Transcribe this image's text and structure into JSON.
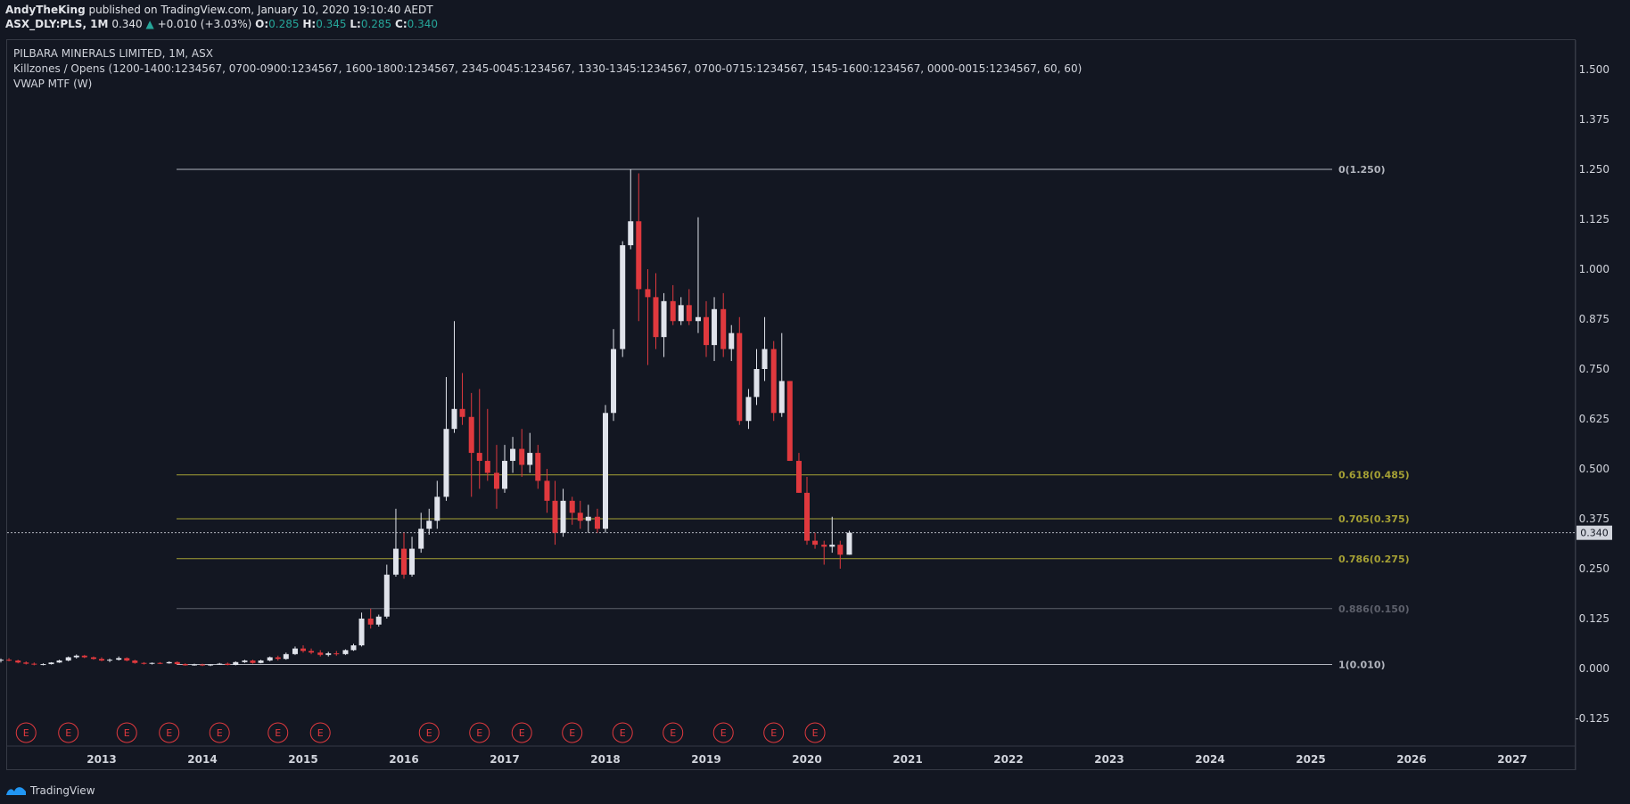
{
  "header": {
    "author": "AndyTheKing",
    "published_text": "published on TradingView.com, January 10, 2020 19:10:40 AEDT",
    "symbol": "ASX_DLY:PLS, 1M",
    "last": "0.340",
    "change": "+0.010 (+3.03%)",
    "o_label": "O:",
    "o_value": "0.285",
    "h_label": "H:",
    "h_value": "0.345",
    "l_label": "L:",
    "l_value": "0.285",
    "c_label": "C:",
    "c_value": "0.340"
  },
  "legend": {
    "title": "PILBARA MINERALS LIMITED, 1M, ASX",
    "killzones": "Killzones / Opens (1200-1400:1234567, 0700-0900:1234567, 1600-1800:1234567, 2345-0045:1234567, 1330-1345:1234567, 0700-0715:1234567, 1545-1600:1234567, 0000-0015:1234567, 60, 60)",
    "vwap": "VWAP MTF (W)"
  },
  "footer": {
    "brand": "TradingView",
    "logo_icon": "tradingview-logo-icon"
  },
  "colors": {
    "background": "#131722",
    "up_candle": "#e0e3eb",
    "down_candle": "#e0393e",
    "fib_white": "#b2b5be",
    "fib_yellow": "#a5a034",
    "fib_gray": "#5d606b",
    "earnings": "#e0393e",
    "price_line": "#b2b5be"
  },
  "chart_data": {
    "type": "candlestick",
    "symbol": "ASX_DLY:PLS",
    "interval": "1M",
    "ylim": [
      -0.17,
      1.58
    ],
    "y_ticks": [
      "1.500",
      "1.375",
      "1.250",
      "1.125",
      "1.000",
      "0.875",
      "0.750",
      "0.625",
      "0.500",
      "0.375",
      "0.250",
      "0.125",
      "0.000",
      "-0.125"
    ],
    "x_ticks": [
      "2013",
      "2014",
      "2015",
      "2016",
      "2017",
      "2018",
      "2019",
      "2020",
      "2021",
      "2022",
      "2023",
      "2024",
      "2025",
      "2026",
      "2027"
    ],
    "last_price": "0.340",
    "fib_levels": [
      {
        "label": "0(1.250)",
        "value": 1.25,
        "style": "white"
      },
      {
        "label": "0.618(0.485)",
        "value": 0.485,
        "style": "yellow"
      },
      {
        "label": "0.705(0.375)",
        "value": 0.375,
        "style": "yellow"
      },
      {
        "label": "0.786(0.275)",
        "value": 0.275,
        "style": "yellow"
      },
      {
        "label": "0.886(0.150)",
        "value": 0.15,
        "style": "gray"
      },
      {
        "label": "1(0.010)",
        "value": 0.01,
        "style": "white"
      }
    ],
    "earnings_marker": "E",
    "earnings_dates": [
      2012.25,
      2012.67,
      2013.25,
      2013.67,
      2014.17,
      2014.75,
      2015.17,
      2016.25,
      2016.75,
      2017.17,
      2017.67,
      2018.17,
      2018.67,
      2019.17,
      2019.67,
      2020.08
    ],
    "candles": [
      [
        2012.0,
        0.02,
        0.025,
        0.015,
        0.022
      ],
      [
        2012.08,
        0.022,
        0.026,
        0.018,
        0.02
      ],
      [
        2012.17,
        0.02,
        0.022,
        0.013,
        0.015
      ],
      [
        2012.25,
        0.015,
        0.018,
        0.01,
        0.012
      ],
      [
        2012.33,
        0.012,
        0.015,
        0.008,
        0.01
      ],
      [
        2012.42,
        0.01,
        0.013,
        0.008,
        0.011
      ],
      [
        2012.5,
        0.011,
        0.016,
        0.01,
        0.015
      ],
      [
        2012.58,
        0.015,
        0.022,
        0.014,
        0.02
      ],
      [
        2012.67,
        0.02,
        0.03,
        0.018,
        0.028
      ],
      [
        2012.75,
        0.028,
        0.035,
        0.025,
        0.032
      ],
      [
        2012.83,
        0.032,
        0.034,
        0.026,
        0.028
      ],
      [
        2012.92,
        0.028,
        0.03,
        0.022,
        0.024
      ],
      [
        2013.0,
        0.024,
        0.028,
        0.018,
        0.02
      ],
      [
        2013.08,
        0.02,
        0.025,
        0.016,
        0.022
      ],
      [
        2013.17,
        0.022,
        0.03,
        0.02,
        0.026
      ],
      [
        2013.25,
        0.026,
        0.028,
        0.018,
        0.02
      ],
      [
        2013.33,
        0.02,
        0.022,
        0.012,
        0.014
      ],
      [
        2013.42,
        0.014,
        0.016,
        0.01,
        0.012
      ],
      [
        2013.5,
        0.012,
        0.015,
        0.01,
        0.014
      ],
      [
        2013.58,
        0.014,
        0.016,
        0.011,
        0.013
      ],
      [
        2013.67,
        0.013,
        0.018,
        0.012,
        0.016
      ],
      [
        2013.75,
        0.016,
        0.018,
        0.01,
        0.011
      ],
      [
        2013.83,
        0.011,
        0.013,
        0.007,
        0.008
      ],
      [
        2013.92,
        0.008,
        0.012,
        0.007,
        0.01
      ],
      [
        2014.0,
        0.01,
        0.012,
        0.006,
        0.008
      ],
      [
        2014.08,
        0.008,
        0.011,
        0.006,
        0.01
      ],
      [
        2014.17,
        0.01,
        0.014,
        0.009,
        0.012
      ],
      [
        2014.25,
        0.012,
        0.015,
        0.008,
        0.009
      ],
      [
        2014.33,
        0.009,
        0.018,
        0.008,
        0.016
      ],
      [
        2014.42,
        0.016,
        0.022,
        0.014,
        0.02
      ],
      [
        2014.5,
        0.02,
        0.022,
        0.012,
        0.014
      ],
      [
        2014.58,
        0.014,
        0.022,
        0.013,
        0.02
      ],
      [
        2014.67,
        0.02,
        0.03,
        0.018,
        0.028
      ],
      [
        2014.75,
        0.028,
        0.032,
        0.02,
        0.024
      ],
      [
        2014.83,
        0.024,
        0.04,
        0.022,
        0.036
      ],
      [
        2014.92,
        0.036,
        0.055,
        0.034,
        0.05
      ],
      [
        2015.0,
        0.05,
        0.058,
        0.04,
        0.044
      ],
      [
        2015.08,
        0.044,
        0.05,
        0.036,
        0.04
      ],
      [
        2015.17,
        0.04,
        0.046,
        0.03,
        0.034
      ],
      [
        2015.25,
        0.034,
        0.042,
        0.03,
        0.038
      ],
      [
        2015.33,
        0.038,
        0.044,
        0.032,
        0.036
      ],
      [
        2015.42,
        0.036,
        0.048,
        0.034,
        0.046
      ],
      [
        2015.5,
        0.046,
        0.062,
        0.044,
        0.058
      ],
      [
        2015.58,
        0.058,
        0.14,
        0.055,
        0.125
      ],
      [
        2015.67,
        0.125,
        0.15,
        0.1,
        0.11
      ],
      [
        2015.75,
        0.11,
        0.135,
        0.105,
        0.13
      ],
      [
        2015.83,
        0.13,
        0.26,
        0.125,
        0.235
      ],
      [
        2015.92,
        0.235,
        0.4,
        0.23,
        0.3
      ],
      [
        2016.0,
        0.3,
        0.34,
        0.225,
        0.235
      ],
      [
        2016.08,
        0.235,
        0.33,
        0.23,
        0.3
      ],
      [
        2016.17,
        0.3,
        0.39,
        0.29,
        0.35
      ],
      [
        2016.25,
        0.35,
        0.4,
        0.335,
        0.37
      ],
      [
        2016.33,
        0.37,
        0.47,
        0.35,
        0.43
      ],
      [
        2016.42,
        0.43,
        0.73,
        0.42,
        0.6
      ],
      [
        2016.5,
        0.6,
        0.87,
        0.59,
        0.65
      ],
      [
        2016.58,
        0.65,
        0.74,
        0.61,
        0.63
      ],
      [
        2016.67,
        0.63,
        0.69,
        0.43,
        0.54
      ],
      [
        2016.75,
        0.54,
        0.7,
        0.45,
        0.52
      ],
      [
        2016.83,
        0.52,
        0.65,
        0.47,
        0.49
      ],
      [
        2016.92,
        0.49,
        0.56,
        0.4,
        0.45
      ],
      [
        2017.0,
        0.45,
        0.56,
        0.44,
        0.52
      ],
      [
        2017.08,
        0.52,
        0.58,
        0.49,
        0.55
      ],
      [
        2017.17,
        0.55,
        0.6,
        0.48,
        0.51
      ],
      [
        2017.25,
        0.51,
        0.59,
        0.49,
        0.54
      ],
      [
        2017.33,
        0.54,
        0.56,
        0.45,
        0.47
      ],
      [
        2017.42,
        0.47,
        0.5,
        0.39,
        0.42
      ],
      [
        2017.5,
        0.42,
        0.47,
        0.31,
        0.34
      ],
      [
        2017.58,
        0.34,
        0.45,
        0.33,
        0.42
      ],
      [
        2017.67,
        0.42,
        0.43,
        0.36,
        0.39
      ],
      [
        2017.75,
        0.39,
        0.42,
        0.35,
        0.37
      ],
      [
        2017.83,
        0.37,
        0.41,
        0.34,
        0.38
      ],
      [
        2017.92,
        0.38,
        0.4,
        0.34,
        0.35
      ],
      [
        2018.0,
        0.35,
        0.66,
        0.34,
        0.64
      ],
      [
        2018.08,
        0.64,
        0.85,
        0.62,
        0.8
      ],
      [
        2018.17,
        0.8,
        1.07,
        0.78,
        1.06
      ],
      [
        2018.25,
        1.06,
        1.25,
        1.05,
        1.12
      ],
      [
        2018.33,
        1.12,
        1.24,
        0.87,
        0.95
      ],
      [
        2018.42,
        0.95,
        1.0,
        0.76,
        0.93
      ],
      [
        2018.5,
        0.93,
        0.99,
        0.8,
        0.83
      ],
      [
        2018.58,
        0.83,
        0.94,
        0.78,
        0.92
      ],
      [
        2018.67,
        0.92,
        0.96,
        0.86,
        0.87
      ],
      [
        2018.75,
        0.87,
        0.93,
        0.86,
        0.91
      ],
      [
        2018.83,
        0.91,
        0.95,
        0.86,
        0.87
      ],
      [
        2018.92,
        0.87,
        1.13,
        0.84,
        0.88
      ],
      [
        2019.0,
        0.88,
        0.92,
        0.78,
        0.81
      ],
      [
        2019.08,
        0.81,
        0.93,
        0.77,
        0.9
      ],
      [
        2019.17,
        0.9,
        0.94,
        0.78,
        0.8
      ],
      [
        2019.25,
        0.8,
        0.86,
        0.77,
        0.84
      ],
      [
        2019.33,
        0.84,
        0.88,
        0.61,
        0.62
      ],
      [
        2019.42,
        0.62,
        0.7,
        0.6,
        0.68
      ],
      [
        2019.5,
        0.68,
        0.8,
        0.66,
        0.75
      ],
      [
        2019.58,
        0.75,
        0.88,
        0.72,
        0.8
      ],
      [
        2019.67,
        0.8,
        0.82,
        0.62,
        0.64
      ],
      [
        2019.75,
        0.64,
        0.84,
        0.63,
        0.72
      ],
      [
        2019.83,
        0.72,
        0.72,
        0.52,
        0.52
      ],
      [
        2019.92,
        0.52,
        0.54,
        0.44,
        0.44
      ],
      [
        2020.0,
        0.44,
        0.48,
        0.31,
        0.32
      ],
      [
        2020.08,
        0.32,
        0.34,
        0.3,
        0.31
      ],
      [
        2020.17,
        0.31,
        0.32,
        0.26,
        0.305
      ],
      [
        2020.25,
        0.305,
        0.38,
        0.29,
        0.31
      ],
      [
        2020.33,
        0.31,
        0.32,
        0.25,
        0.285
      ],
      [
        2020.42,
        0.285,
        0.345,
        0.285,
        0.34
      ]
    ]
  }
}
